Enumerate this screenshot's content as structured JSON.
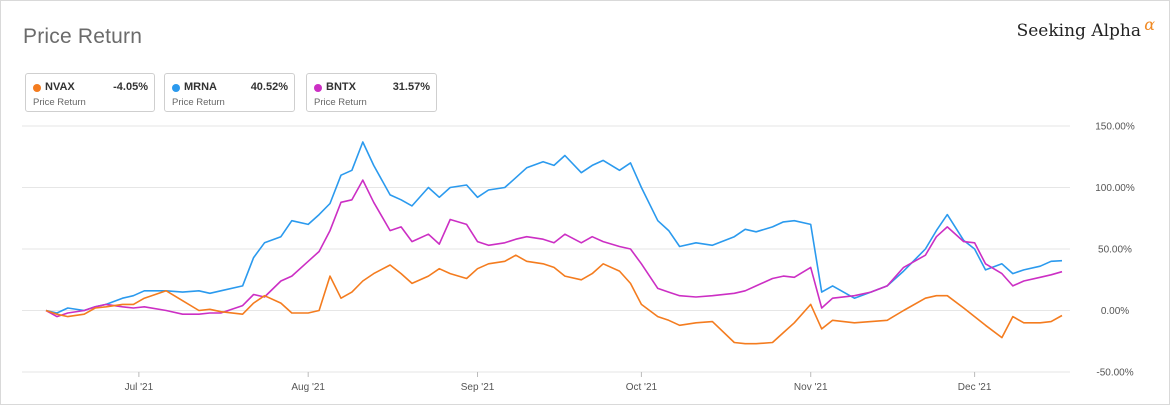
{
  "header": {
    "title": "Price Return",
    "brand": "Seeking Alpha",
    "brand_mark": "α"
  },
  "legend": [
    {
      "name": "NVAX",
      "value": "-4.05%",
      "sub": "Price Return",
      "color": "#f47c1f"
    },
    {
      "name": "MRNA",
      "value": "40.52%",
      "sub": "Price Return",
      "color": "#2b9aee"
    },
    {
      "name": "BNTX",
      "value": "31.57%",
      "sub": "Price Return",
      "color": "#cc2fc4"
    }
  ],
  "chart_data": {
    "type": "line",
    "title": "Price Return",
    "x_axis": {
      "type": "date",
      "range": [
        "2021-06-14",
        "2021-12-17"
      ],
      "ticks": [
        {
          "date": "2021-07-01",
          "label": "Jul '21"
        },
        {
          "date": "2021-08-01",
          "label": "Aug '21"
        },
        {
          "date": "2021-09-01",
          "label": "Sep '21"
        },
        {
          "date": "2021-10-01",
          "label": "Oct '21"
        },
        {
          "date": "2021-11-01",
          "label": "Nov '21"
        },
        {
          "date": "2021-12-01",
          "label": "Dec '21"
        }
      ]
    },
    "y_axis": {
      "unit": "%",
      "range": [
        -50,
        150
      ],
      "ticks": [
        150,
        100,
        50,
        0,
        -50
      ],
      "tick_labels": [
        "150.00%",
        "100.00%",
        "50.00%",
        "0.00%",
        "-50.00%"
      ],
      "position": "right"
    },
    "grid": "horizontal",
    "series": [
      {
        "name": "MRNA",
        "color": "#2b9aee",
        "points": [
          [
            "2021-06-14",
            0
          ],
          [
            "2021-06-16",
            -2
          ],
          [
            "2021-06-18",
            2
          ],
          [
            "2021-06-21",
            0
          ],
          [
            "2021-06-23",
            3
          ],
          [
            "2021-06-25",
            5
          ],
          [
            "2021-06-28",
            10
          ],
          [
            "2021-06-30",
            12
          ],
          [
            "2021-07-02",
            16
          ],
          [
            "2021-07-06",
            16
          ],
          [
            "2021-07-09",
            15
          ],
          [
            "2021-07-12",
            16
          ],
          [
            "2021-07-14",
            14
          ],
          [
            "2021-07-16",
            16
          ],
          [
            "2021-07-20",
            20
          ],
          [
            "2021-07-22",
            43
          ],
          [
            "2021-07-24",
            55
          ],
          [
            "2021-07-27",
            60
          ],
          [
            "2021-07-29",
            73
          ],
          [
            "2021-08-01",
            70
          ],
          [
            "2021-08-03",
            78
          ],
          [
            "2021-08-05",
            87
          ],
          [
            "2021-08-07",
            110
          ],
          [
            "2021-08-09",
            114
          ],
          [
            "2021-08-11",
            137
          ],
          [
            "2021-08-13",
            118
          ],
          [
            "2021-08-16",
            94
          ],
          [
            "2021-08-18",
            90
          ],
          [
            "2021-08-20",
            85
          ],
          [
            "2021-08-23",
            100
          ],
          [
            "2021-08-25",
            92
          ],
          [
            "2021-08-27",
            100
          ],
          [
            "2021-08-30",
            102
          ],
          [
            "2021-09-01",
            92
          ],
          [
            "2021-09-03",
            98
          ],
          [
            "2021-09-06",
            100
          ],
          [
            "2021-09-08",
            108
          ],
          [
            "2021-09-10",
            116
          ],
          [
            "2021-09-13",
            121
          ],
          [
            "2021-09-15",
            118
          ],
          [
            "2021-09-17",
            126
          ],
          [
            "2021-09-20",
            112
          ],
          [
            "2021-09-22",
            118
          ],
          [
            "2021-09-24",
            122
          ],
          [
            "2021-09-27",
            114
          ],
          [
            "2021-09-29",
            120
          ],
          [
            "2021-10-01",
            100
          ],
          [
            "2021-10-04",
            73
          ],
          [
            "2021-10-06",
            65
          ],
          [
            "2021-10-08",
            52
          ],
          [
            "2021-10-11",
            55
          ],
          [
            "2021-10-14",
            53
          ],
          [
            "2021-10-18",
            60
          ],
          [
            "2021-10-20",
            66
          ],
          [
            "2021-10-22",
            64
          ],
          [
            "2021-10-25",
            68
          ],
          [
            "2021-10-27",
            72
          ],
          [
            "2021-10-29",
            73
          ],
          [
            "2021-11-01",
            70
          ],
          [
            "2021-11-03",
            15
          ],
          [
            "2021-11-05",
            20
          ],
          [
            "2021-11-09",
            10
          ],
          [
            "2021-11-12",
            15
          ],
          [
            "2021-11-15",
            20
          ],
          [
            "2021-11-18",
            32
          ],
          [
            "2021-11-22",
            50
          ],
          [
            "2021-11-24",
            65
          ],
          [
            "2021-11-26",
            78
          ],
          [
            "2021-11-29",
            57
          ],
          [
            "2021-12-01",
            50
          ],
          [
            "2021-12-03",
            33
          ],
          [
            "2021-12-06",
            38
          ],
          [
            "2021-12-08",
            30
          ],
          [
            "2021-12-10",
            33
          ],
          [
            "2021-12-13",
            36
          ],
          [
            "2021-12-15",
            40
          ],
          [
            "2021-12-17",
            40.52
          ]
        ]
      },
      {
        "name": "BNTX",
        "color": "#cc2fc4",
        "points": [
          [
            "2021-06-14",
            0
          ],
          [
            "2021-06-16",
            -5
          ],
          [
            "2021-06-18",
            -2
          ],
          [
            "2021-06-21",
            0
          ],
          [
            "2021-06-23",
            3
          ],
          [
            "2021-06-25",
            5
          ],
          [
            "2021-06-28",
            3
          ],
          [
            "2021-06-30",
            2
          ],
          [
            "2021-07-02",
            3
          ],
          [
            "2021-07-06",
            0
          ],
          [
            "2021-07-09",
            -3
          ],
          [
            "2021-07-12",
            -3
          ],
          [
            "2021-07-14",
            -2
          ],
          [
            "2021-07-16",
            -2
          ],
          [
            "2021-07-20",
            4
          ],
          [
            "2021-07-22",
            13
          ],
          [
            "2021-07-24",
            11
          ],
          [
            "2021-07-27",
            24
          ],
          [
            "2021-07-29",
            28
          ],
          [
            "2021-08-01",
            40
          ],
          [
            "2021-08-03",
            48
          ],
          [
            "2021-08-05",
            65
          ],
          [
            "2021-08-07",
            88
          ],
          [
            "2021-08-09",
            90
          ],
          [
            "2021-08-11",
            106
          ],
          [
            "2021-08-13",
            88
          ],
          [
            "2021-08-16",
            65
          ],
          [
            "2021-08-18",
            68
          ],
          [
            "2021-08-20",
            56
          ],
          [
            "2021-08-23",
            62
          ],
          [
            "2021-08-25",
            54
          ],
          [
            "2021-08-27",
            74
          ],
          [
            "2021-08-30",
            70
          ],
          [
            "2021-09-01",
            56
          ],
          [
            "2021-09-03",
            53
          ],
          [
            "2021-09-06",
            55
          ],
          [
            "2021-09-08",
            58
          ],
          [
            "2021-09-10",
            60
          ],
          [
            "2021-09-13",
            58
          ],
          [
            "2021-09-15",
            55
          ],
          [
            "2021-09-17",
            62
          ],
          [
            "2021-09-20",
            55
          ],
          [
            "2021-09-22",
            60
          ],
          [
            "2021-09-24",
            56
          ],
          [
            "2021-09-27",
            52
          ],
          [
            "2021-09-29",
            50
          ],
          [
            "2021-10-01",
            38
          ],
          [
            "2021-10-04",
            18
          ],
          [
            "2021-10-06",
            15
          ],
          [
            "2021-10-08",
            12
          ],
          [
            "2021-10-11",
            11
          ],
          [
            "2021-10-14",
            12
          ],
          [
            "2021-10-18",
            14
          ],
          [
            "2021-10-20",
            16
          ],
          [
            "2021-10-22",
            20
          ],
          [
            "2021-10-25",
            26
          ],
          [
            "2021-10-27",
            28
          ],
          [
            "2021-10-29",
            27
          ],
          [
            "2021-11-01",
            35
          ],
          [
            "2021-11-03",
            2
          ],
          [
            "2021-11-05",
            10
          ],
          [
            "2021-11-09",
            12
          ],
          [
            "2021-11-12",
            15
          ],
          [
            "2021-11-15",
            20
          ],
          [
            "2021-11-18",
            35
          ],
          [
            "2021-11-22",
            45
          ],
          [
            "2021-11-24",
            60
          ],
          [
            "2021-11-26",
            68
          ],
          [
            "2021-11-29",
            56
          ],
          [
            "2021-12-01",
            55
          ],
          [
            "2021-12-03",
            38
          ],
          [
            "2021-12-06",
            30
          ],
          [
            "2021-12-08",
            20
          ],
          [
            "2021-12-10",
            24
          ],
          [
            "2021-12-13",
            27
          ],
          [
            "2021-12-15",
            29
          ],
          [
            "2021-12-17",
            31.57
          ]
        ]
      },
      {
        "name": "NVAX",
        "color": "#f47c1f",
        "points": [
          [
            "2021-06-14",
            0
          ],
          [
            "2021-06-16",
            -3
          ],
          [
            "2021-06-18",
            -5
          ],
          [
            "2021-06-21",
            -3
          ],
          [
            "2021-06-23",
            2
          ],
          [
            "2021-06-25",
            3
          ],
          [
            "2021-06-28",
            5
          ],
          [
            "2021-06-30",
            5
          ],
          [
            "2021-07-02",
            10
          ],
          [
            "2021-07-06",
            16
          ],
          [
            "2021-07-09",
            8
          ],
          [
            "2021-07-12",
            0
          ],
          [
            "2021-07-14",
            1
          ],
          [
            "2021-07-16",
            -1
          ],
          [
            "2021-07-20",
            -3
          ],
          [
            "2021-07-22",
            6
          ],
          [
            "2021-07-24",
            12
          ],
          [
            "2021-07-27",
            6
          ],
          [
            "2021-07-29",
            -2
          ],
          [
            "2021-08-01",
            -2
          ],
          [
            "2021-08-03",
            0
          ],
          [
            "2021-08-05",
            28
          ],
          [
            "2021-08-07",
            10
          ],
          [
            "2021-08-09",
            15
          ],
          [
            "2021-08-11",
            24
          ],
          [
            "2021-08-13",
            30
          ],
          [
            "2021-08-16",
            37
          ],
          [
            "2021-08-18",
            30
          ],
          [
            "2021-08-20",
            22
          ],
          [
            "2021-08-23",
            28
          ],
          [
            "2021-08-25",
            34
          ],
          [
            "2021-08-27",
            30
          ],
          [
            "2021-08-30",
            26
          ],
          [
            "2021-09-01",
            34
          ],
          [
            "2021-09-03",
            38
          ],
          [
            "2021-09-06",
            40
          ],
          [
            "2021-09-08",
            45
          ],
          [
            "2021-09-10",
            40
          ],
          [
            "2021-09-13",
            38
          ],
          [
            "2021-09-15",
            35
          ],
          [
            "2021-09-17",
            28
          ],
          [
            "2021-09-20",
            25
          ],
          [
            "2021-09-22",
            30
          ],
          [
            "2021-09-24",
            38
          ],
          [
            "2021-09-27",
            32
          ],
          [
            "2021-09-29",
            22
          ],
          [
            "2021-10-01",
            5
          ],
          [
            "2021-10-04",
            -5
          ],
          [
            "2021-10-06",
            -8
          ],
          [
            "2021-10-08",
            -12
          ],
          [
            "2021-10-11",
            -10
          ],
          [
            "2021-10-14",
            -9
          ],
          [
            "2021-10-18",
            -26
          ],
          [
            "2021-10-20",
            -27
          ],
          [
            "2021-10-22",
            -27
          ],
          [
            "2021-10-25",
            -26
          ],
          [
            "2021-10-27",
            -18
          ],
          [
            "2021-10-29",
            -10
          ],
          [
            "2021-11-01",
            5
          ],
          [
            "2021-11-03",
            -15
          ],
          [
            "2021-11-05",
            -8
          ],
          [
            "2021-11-09",
            -10
          ],
          [
            "2021-11-12",
            -9
          ],
          [
            "2021-11-15",
            -8
          ],
          [
            "2021-11-18",
            0
          ],
          [
            "2021-11-22",
            10
          ],
          [
            "2021-11-24",
            12
          ],
          [
            "2021-11-26",
            12
          ],
          [
            "2021-11-29",
            2
          ],
          [
            "2021-12-01",
            -5
          ],
          [
            "2021-12-03",
            -12
          ],
          [
            "2021-12-06",
            -22
          ],
          [
            "2021-12-08",
            -5
          ],
          [
            "2021-12-10",
            -10
          ],
          [
            "2021-12-13",
            -10
          ],
          [
            "2021-12-15",
            -9
          ],
          [
            "2021-12-17",
            -4.05
          ]
        ]
      }
    ]
  }
}
